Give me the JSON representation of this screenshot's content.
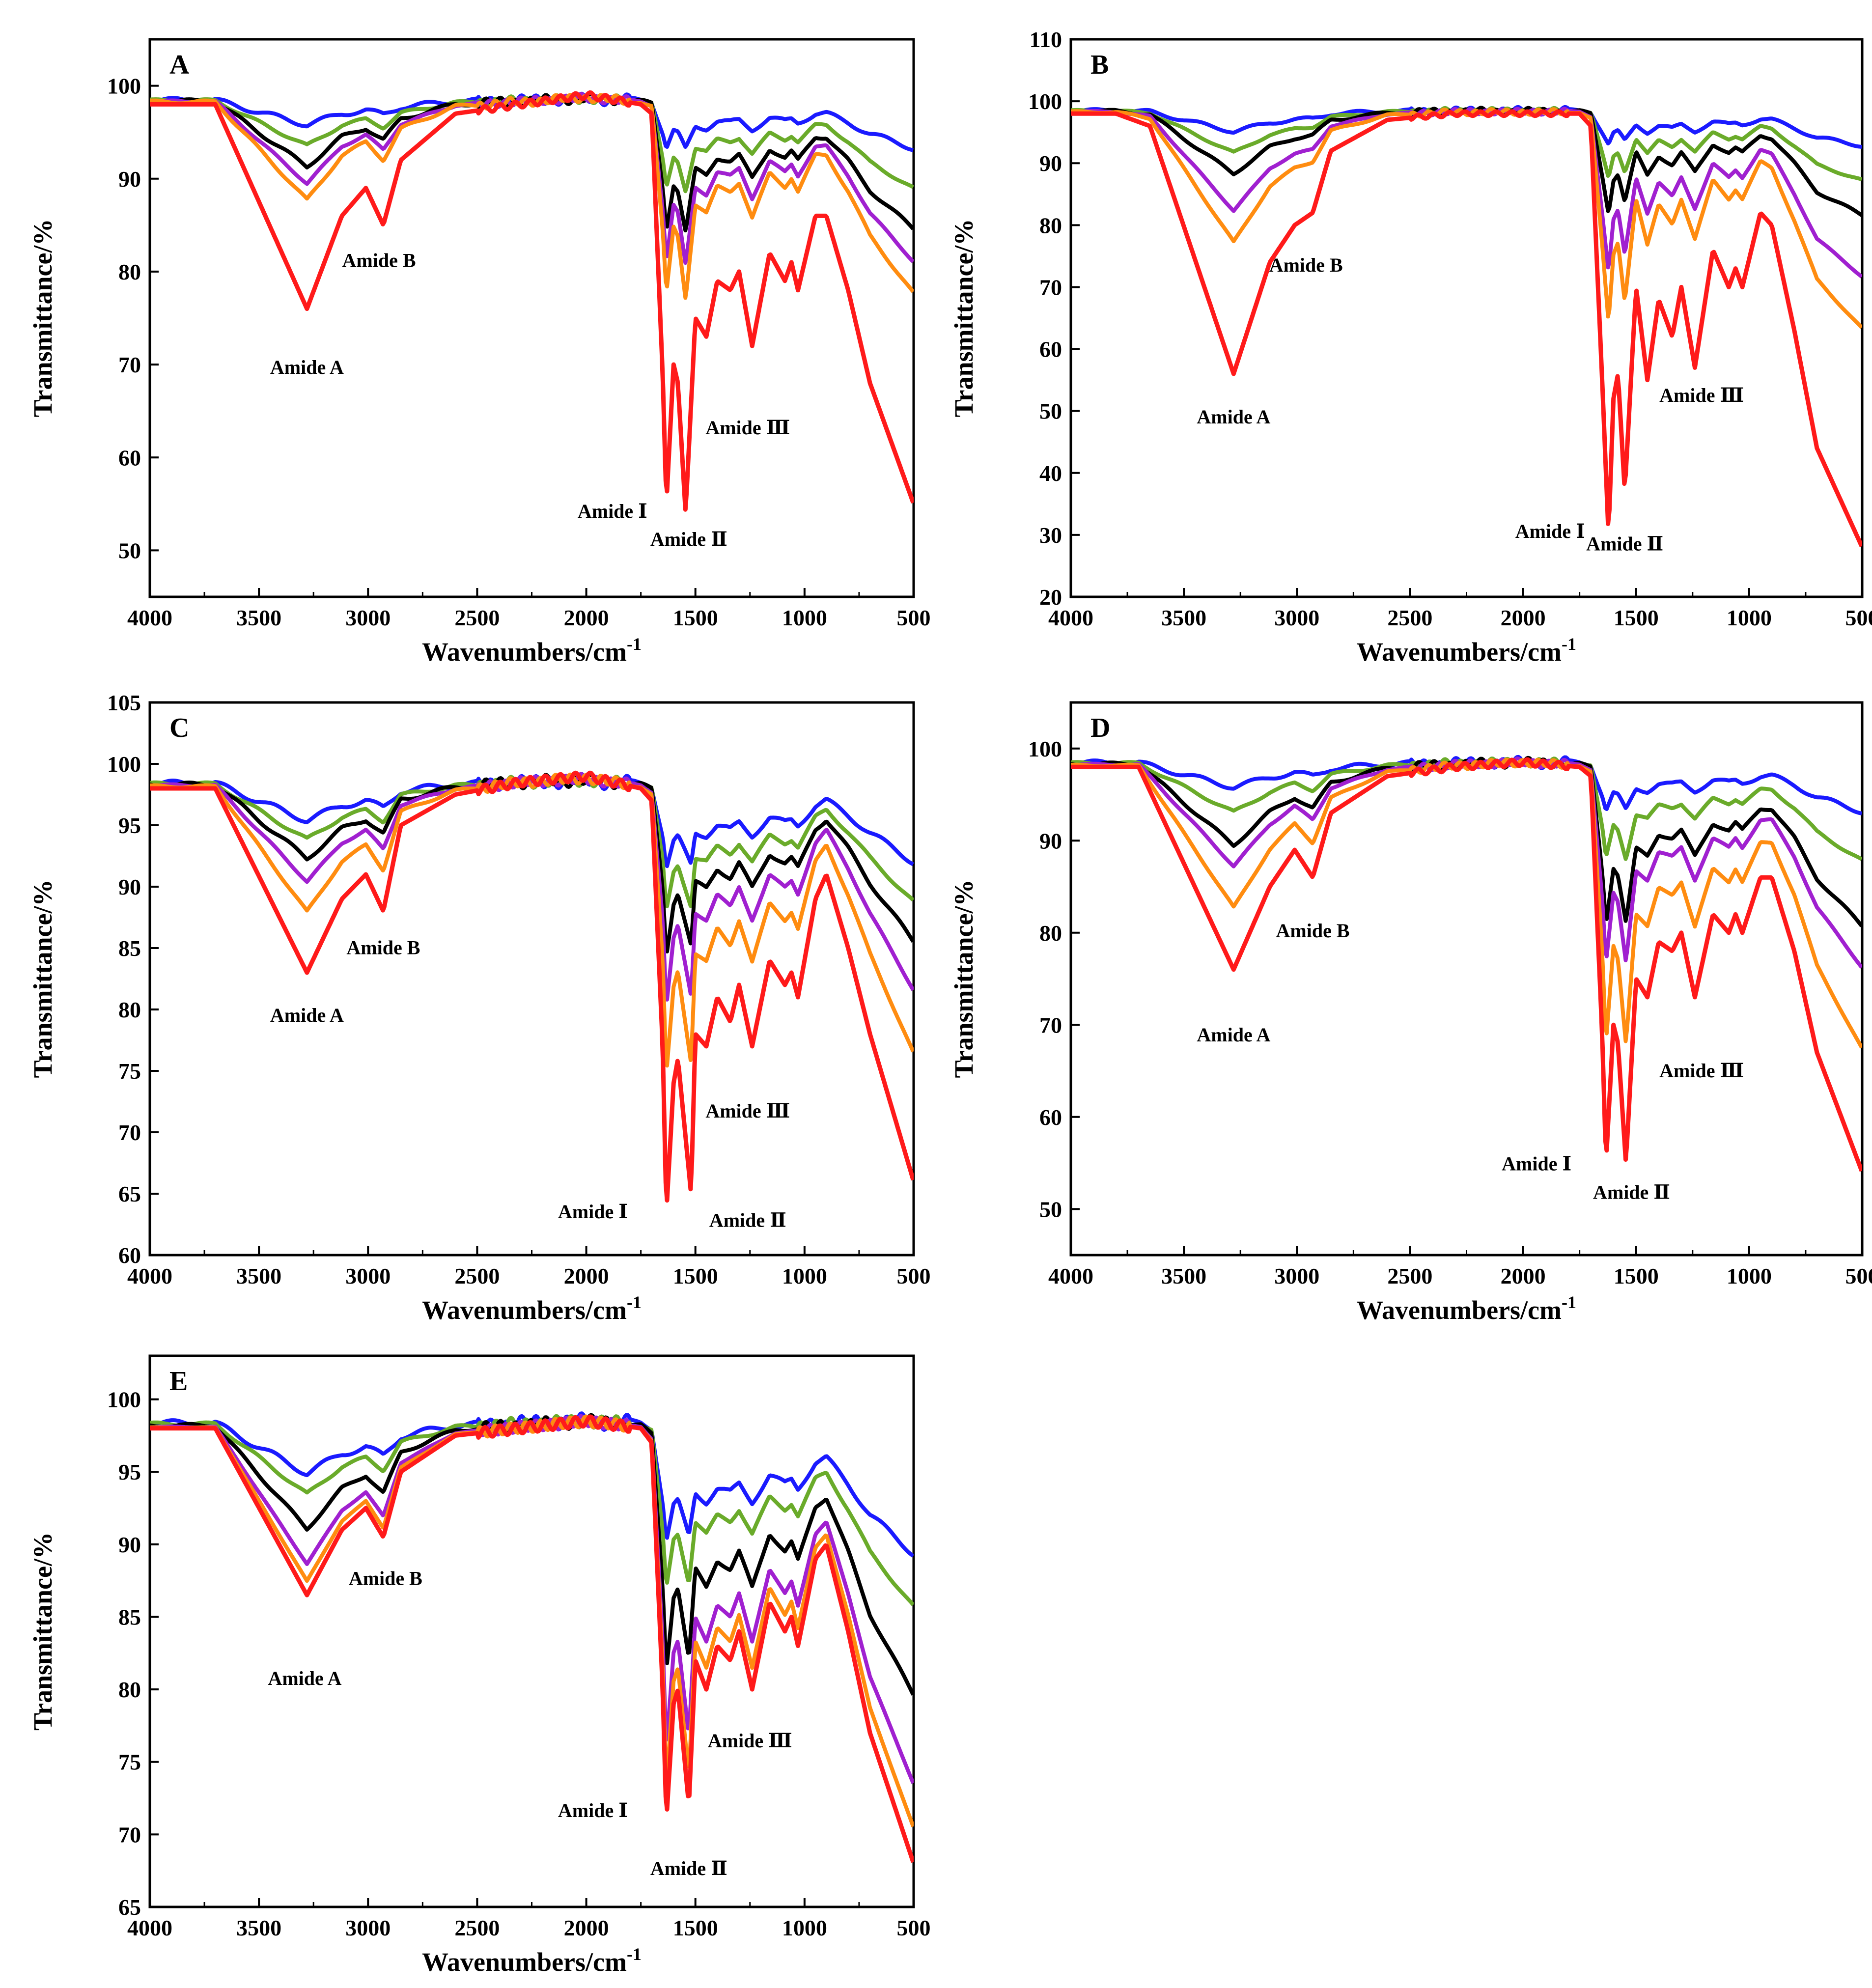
{
  "colors": {
    "blue": "#1a1aff",
    "green": "#6aab2a",
    "black": "#000000",
    "purple": "#a020d0",
    "orange": "#ff8c10",
    "red": "#ff1a1a"
  },
  "chart_data": [
    {
      "type": "line",
      "panel": "A",
      "xlabel": "Wavenumbers/cm-1",
      "ylabel": "Transmittance/%",
      "xlim": [
        4000,
        500
      ],
      "ylim": [
        45,
        105
      ],
      "xticks": [
        4000,
        3500,
        3000,
        2500,
        2000,
        1500,
        1000,
        500
      ],
      "yticks": [
        50,
        60,
        70,
        80,
        90,
        100
      ],
      "depths": {
        "blue": 0.12,
        "green": 0.22,
        "black": 0.32,
        "purple": 0.4,
        "orange": 0.48,
        "red": 1.0
      },
      "red_points": [
        [
          4000,
          98
        ],
        [
          3800,
          98
        ],
        [
          3700,
          98
        ],
        [
          3280,
          76
        ],
        [
          3120,
          86
        ],
        [
          3010,
          89
        ],
        [
          2930,
          85
        ],
        [
          2850,
          92
        ],
        [
          2600,
          97
        ],
        [
          2300,
          98
        ],
        [
          2000,
          99
        ],
        [
          1750,
          98
        ],
        [
          1700,
          97
        ],
        [
          1650,
          69
        ],
        [
          1633,
          55
        ],
        [
          1600,
          70
        ],
        [
          1580,
          68
        ],
        [
          1545,
          54
        ],
        [
          1500,
          75
        ],
        [
          1450,
          73
        ],
        [
          1400,
          79
        ],
        [
          1340,
          78
        ],
        [
          1300,
          80
        ],
        [
          1240,
          72
        ],
        [
          1160,
          82
        ],
        [
          1090,
          79
        ],
        [
          1060,
          81
        ],
        [
          1030,
          78
        ],
        [
          950,
          86
        ],
        [
          900,
          86
        ],
        [
          800,
          78
        ],
        [
          700,
          68
        ],
        [
          500,
          55
        ]
      ],
      "annotations": [
        {
          "text": "Amide A",
          "x": 3280,
          "y": 69
        },
        {
          "text": "Amide B",
          "x": 2950,
          "y": 80.5
        },
        {
          "text": "Amide Ⅰ",
          "x": 1880,
          "y": 53.5
        },
        {
          "text": "Amide Ⅱ",
          "x": 1530,
          "y": 50.5
        },
        {
          "text": "Amide Ⅲ",
          "x": 1260,
          "y": 62.5
        }
      ]
    },
    {
      "type": "line",
      "panel": "B",
      "xlabel": "Wavenumbers/cm-1",
      "ylabel": "Transmittance/%",
      "xlim": [
        4000,
        500
      ],
      "ylim": [
        20,
        110
      ],
      "xticks": [
        4000,
        3500,
        3000,
        2500,
        2000,
        1500,
        1000,
        500
      ],
      "yticks": [
        20,
        30,
        40,
        50,
        60,
        70,
        80,
        90,
        100,
        110
      ],
      "depths": {
        "blue": 0.08,
        "green": 0.16,
        "black": 0.24,
        "purple": 0.38,
        "orange": 0.5,
        "red": 1.0
      },
      "red_points": [
        [
          4000,
          98
        ],
        [
          3800,
          98
        ],
        [
          3650,
          96
        ],
        [
          3280,
          56
        ],
        [
          3120,
          74
        ],
        [
          3010,
          80
        ],
        [
          2930,
          82
        ],
        [
          2850,
          92
        ],
        [
          2600,
          97
        ],
        [
          2300,
          98
        ],
        [
          2000,
          98
        ],
        [
          1750,
          98
        ],
        [
          1700,
          96
        ],
        [
          1650,
          55
        ],
        [
          1622,
          30
        ],
        [
          1600,
          52
        ],
        [
          1580,
          56
        ],
        [
          1550,
          37
        ],
        [
          1500,
          70
        ],
        [
          1450,
          55
        ],
        [
          1400,
          68
        ],
        [
          1340,
          62
        ],
        [
          1300,
          70
        ],
        [
          1240,
          57
        ],
        [
          1160,
          76
        ],
        [
          1090,
          70
        ],
        [
          1060,
          73
        ],
        [
          1030,
          70
        ],
        [
          950,
          82
        ],
        [
          900,
          80
        ],
        [
          800,
          63
        ],
        [
          700,
          44
        ],
        [
          500,
          28
        ]
      ],
      "annotations": [
        {
          "text": "Amide A",
          "x": 3280,
          "y": 48
        },
        {
          "text": "Amide B",
          "x": 2960,
          "y": 72.5
        },
        {
          "text": "Amide Ⅰ",
          "x": 1880,
          "y": 29.5
        },
        {
          "text": "Amide Ⅱ",
          "x": 1550,
          "y": 27.5
        },
        {
          "text": "Amide Ⅲ",
          "x": 1210,
          "y": 51.5
        }
      ]
    },
    {
      "type": "line",
      "panel": "C",
      "xlabel": "Wavenumbers/cm-1",
      "ylabel": "Transmittance/%",
      "xlim": [
        4000,
        500
      ],
      "ylim": [
        60,
        105
      ],
      "xticks": [
        4000,
        3500,
        3000,
        2500,
        2000,
        1500,
        1000,
        500
      ],
      "yticks": [
        60,
        65,
        70,
        75,
        80,
        85,
        90,
        95,
        100,
        105
      ],
      "depths": {
        "blue": 0.2,
        "green": 0.3,
        "black": 0.4,
        "purple": 0.52,
        "orange": 0.68,
        "red": 1.0
      },
      "red_points": [
        [
          4000,
          98
        ],
        [
          3800,
          98
        ],
        [
          3700,
          98
        ],
        [
          3280,
          83
        ],
        [
          3120,
          89
        ],
        [
          3010,
          91
        ],
        [
          2930,
          88
        ],
        [
          2850,
          95
        ],
        [
          2600,
          97.5
        ],
        [
          2300,
          98.5
        ],
        [
          2000,
          99
        ],
        [
          1750,
          98
        ],
        [
          1700,
          97
        ],
        [
          1650,
          77
        ],
        [
          1633,
          63.5
        ],
        [
          1600,
          74
        ],
        [
          1580,
          76
        ],
        [
          1520,
          65
        ],
        [
          1500,
          78
        ],
        [
          1450,
          77
        ],
        [
          1400,
          81
        ],
        [
          1340,
          79
        ],
        [
          1300,
          82
        ],
        [
          1240,
          77
        ],
        [
          1160,
          84
        ],
        [
          1090,
          82
        ],
        [
          1060,
          83
        ],
        [
          1030,
          81
        ],
        [
          950,
          89
        ],
        [
          900,
          91
        ],
        [
          800,
          85
        ],
        [
          700,
          78
        ],
        [
          500,
          66
        ]
      ],
      "annotations": [
        {
          "text": "Amide A",
          "x": 3280,
          "y": 79
        },
        {
          "text": "Amide B",
          "x": 2930,
          "y": 84.5
        },
        {
          "text": "Amide Ⅰ",
          "x": 1970,
          "y": 63
        },
        {
          "text": "Amide Ⅱ",
          "x": 1260,
          "y": 62.3
        },
        {
          "text": "Amide Ⅲ",
          "x": 1260,
          "y": 71.2
        }
      ]
    },
    {
      "type": "line",
      "panel": "D",
      "xlabel": "Wavenumbers/cm-1",
      "ylabel": "Transmittance/%",
      "xlim": [
        4000,
        500
      ],
      "ylim": [
        45,
        105
      ],
      "xticks": [
        4000,
        3500,
        3000,
        2500,
        2000,
        1500,
        1000,
        500
      ],
      "yticks": [
        50,
        60,
        70,
        80,
        90,
        100
      ],
      "depths": {
        "blue": 0.12,
        "green": 0.24,
        "black": 0.4,
        "purple": 0.5,
        "orange": 0.7,
        "red": 1.0
      },
      "red_points": [
        [
          4000,
          98
        ],
        [
          3800,
          98
        ],
        [
          3700,
          98
        ],
        [
          3280,
          76
        ],
        [
          3120,
          85
        ],
        [
          3010,
          89
        ],
        [
          2930,
          86
        ],
        [
          2850,
          93
        ],
        [
          2600,
          97
        ],
        [
          2300,
          98
        ],
        [
          2000,
          98.5
        ],
        [
          1750,
          98
        ],
        [
          1700,
          97
        ],
        [
          1650,
          69
        ],
        [
          1633,
          55
        ],
        [
          1600,
          70
        ],
        [
          1580,
          68
        ],
        [
          1545,
          55
        ],
        [
          1500,
          75
        ],
        [
          1450,
          73
        ],
        [
          1400,
          79
        ],
        [
          1340,
          78
        ],
        [
          1300,
          80
        ],
        [
          1240,
          73
        ],
        [
          1160,
          82
        ],
        [
          1090,
          80
        ],
        [
          1060,
          82
        ],
        [
          1030,
          80
        ],
        [
          950,
          86
        ],
        [
          900,
          86
        ],
        [
          800,
          78
        ],
        [
          700,
          67
        ],
        [
          500,
          54
        ]
      ],
      "annotations": [
        {
          "text": "Amide A",
          "x": 3280,
          "y": 68.2
        },
        {
          "text": "Amide B",
          "x": 2930,
          "y": 79.5
        },
        {
          "text": "Amide Ⅰ",
          "x": 1940,
          "y": 54.2
        },
        {
          "text": "Amide Ⅱ",
          "x": 1520,
          "y": 51.1
        },
        {
          "text": "Amide Ⅲ",
          "x": 1210,
          "y": 64.3
        }
      ]
    },
    {
      "type": "line",
      "panel": "E",
      "xlabel": "Wavenumbers/cm-1",
      "ylabel": "Transmittance/%",
      "xlim": [
        4000,
        500
      ],
      "ylim": [
        65,
        103
      ],
      "xticks": [
        4000,
        3500,
        3000,
        2500,
        2000,
        1500,
        1000,
        500
      ],
      "yticks": [
        65,
        70,
        75,
        80,
        85,
        90,
        95,
        100
      ],
      "depths": {
        "blue": 0.3,
        "green": 0.42,
        "black": 0.62,
        "purple": 0.82,
        "orange": 0.92,
        "red": 1.0
      },
      "red_points": [
        [
          4000,
          98
        ],
        [
          3800,
          98
        ],
        [
          3700,
          98
        ],
        [
          3280,
          86.5
        ],
        [
          3120,
          91
        ],
        [
          3010,
          92.5
        ],
        [
          2930,
          90.5
        ],
        [
          2850,
          95
        ],
        [
          2600,
          97.5
        ],
        [
          2300,
          98
        ],
        [
          2000,
          98.5
        ],
        [
          1750,
          98
        ],
        [
          1700,
          97
        ],
        [
          1650,
          80
        ],
        [
          1633,
          71
        ],
        [
          1600,
          79
        ],
        [
          1580,
          80
        ],
        [
          1530,
          72
        ],
        [
          1500,
          82
        ],
        [
          1450,
          80
        ],
        [
          1400,
          83
        ],
        [
          1340,
          82
        ],
        [
          1300,
          84
        ],
        [
          1240,
          80
        ],
        [
          1160,
          86
        ],
        [
          1090,
          84
        ],
        [
          1060,
          85
        ],
        [
          1030,
          83
        ],
        [
          950,
          89
        ],
        [
          900,
          90
        ],
        [
          800,
          84
        ],
        [
          700,
          77
        ],
        [
          500,
          68
        ]
      ],
      "annotations": [
        {
          "text": "Amide A",
          "x": 3290,
          "y": 80.3
        },
        {
          "text": "Amide B",
          "x": 2920,
          "y": 87.2
        },
        {
          "text": "Amide Ⅰ",
          "x": 1970,
          "y": 71.2
        },
        {
          "text": "Amide Ⅱ",
          "x": 1530,
          "y": 67.2
        },
        {
          "text": "Amide Ⅲ",
          "x": 1250,
          "y": 76
        }
      ]
    }
  ]
}
